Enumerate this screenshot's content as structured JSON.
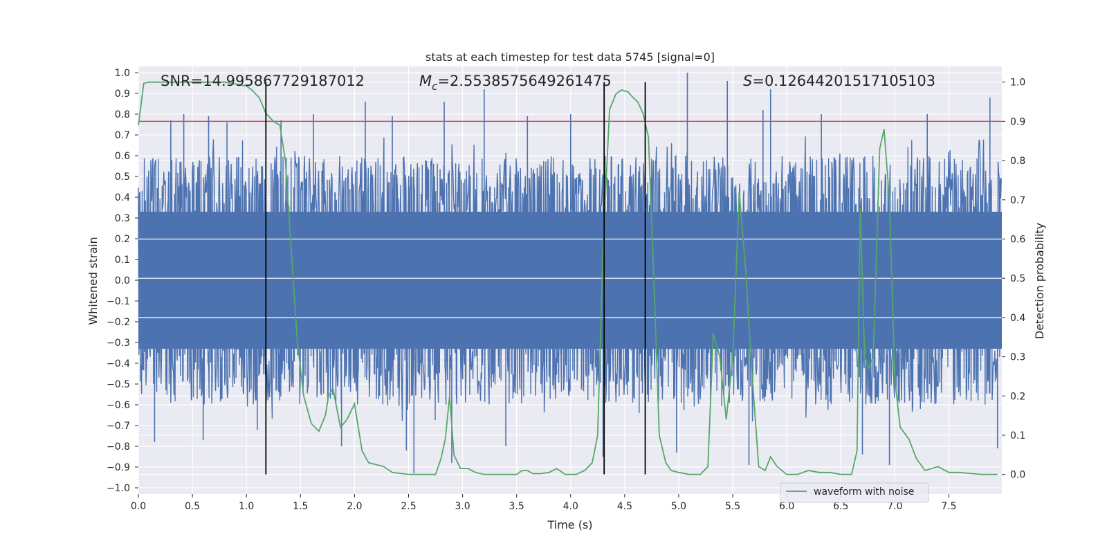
{
  "chart_data": {
    "type": "line",
    "title": "stats at each timestep for test data 5745 [signal=0]",
    "xlabel": "Time (s)",
    "ylabel_left": "Whitened strain",
    "ylabel_right": "Detection probability",
    "xlim": [
      0.0,
      7.99
    ],
    "ylim_left": [
      -1.03,
      1.03
    ],
    "ylim_right": [
      -0.05,
      1.04
    ],
    "x_ticks": [
      0.0,
      0.5,
      1.0,
      1.5,
      2.0,
      2.5,
      3.0,
      3.5,
      4.0,
      4.5,
      5.0,
      5.5,
      6.0,
      6.5,
      7.0,
      7.5
    ],
    "x_tick_labels": [
      "0.0",
      "0.5",
      "1.0",
      "1.5",
      "2.0",
      "2.5",
      "3.0",
      "3.5",
      "4.0",
      "4.5",
      "5.0",
      "5.5",
      "6.0",
      "6.5",
      "7.0",
      "7.5"
    ],
    "y_left_ticks": [
      1.0,
      0.9,
      0.8,
      0.7,
      0.6,
      0.5,
      0.4,
      0.3,
      0.2,
      0.1,
      0.0,
      -0.1,
      -0.2,
      -0.3,
      -0.4,
      -0.5,
      -0.6,
      -0.7,
      -0.8,
      -0.9,
      -1.0
    ],
    "y_left_tick_labels": [
      "1.0",
      "0.9",
      "0.8",
      "0.7",
      "0.6",
      "0.5",
      "0.4",
      "0.3",
      "0.2",
      "0.1",
      "0.0",
      "−0.1",
      "−0.2",
      "−0.3",
      "−0.4",
      "−0.5",
      "−0.6",
      "−0.7",
      "−0.8",
      "−0.9",
      "−1.0"
    ],
    "y_right_ticks": [
      1.0,
      0.9,
      0.8,
      0.7,
      0.6,
      0.5,
      0.4,
      0.3,
      0.2,
      0.1,
      0.0
    ],
    "y_right_tick_labels": [
      "1.0",
      "0.9",
      "0.8",
      "0.7",
      "0.6",
      "0.5",
      "0.4",
      "0.3",
      "0.2",
      "0.1",
      "0.0"
    ],
    "annotations": {
      "snr": "SNR=14.995867729187012",
      "mc_symbol": "M",
      "mc_sub": "c",
      "mc_value": "=2.5538575649261475",
      "s_symbol": "S",
      "s_value": "=0.12644201517105103"
    },
    "threshold": {
      "y_right": 0.9,
      "color": "#c44e52"
    },
    "vertical_lines_x": [
      1.18,
      4.31,
      4.69
    ],
    "waveform": {
      "name": "waveform with noise",
      "color": "#4c72b0",
      "n_samples": 1600,
      "envelope_inner": 0.33,
      "envelope_outer": 0.6,
      "spikes": [
        {
          "x": 0.3,
          "y": 0.77
        },
        {
          "x": 0.42,
          "y": 0.8
        },
        {
          "x": 0.65,
          "y": 0.79
        },
        {
          "x": 0.82,
          "y": 0.76
        },
        {
          "x": 1.32,
          "y": 0.77
        },
        {
          "x": 1.62,
          "y": 0.8
        },
        {
          "x": 2.1,
          "y": 0.86
        },
        {
          "x": 2.35,
          "y": 0.79
        },
        {
          "x": 2.83,
          "y": 0.86
        },
        {
          "x": 3.2,
          "y": 0.92
        },
        {
          "x": 3.6,
          "y": 0.79
        },
        {
          "x": 4.0,
          "y": 0.8
        },
        {
          "x": 5.08,
          "y": 1.0
        },
        {
          "x": 5.45,
          "y": 0.96
        },
        {
          "x": 5.78,
          "y": 0.82
        },
        {
          "x": 5.85,
          "y": 0.92
        },
        {
          "x": 6.32,
          "y": 0.8
        },
        {
          "x": 7.3,
          "y": 0.8
        },
        {
          "x": 7.88,
          "y": 0.88
        },
        {
          "x": 0.15,
          "y": -0.78
        },
        {
          "x": 0.6,
          "y": -0.77
        },
        {
          "x": 1.1,
          "y": -0.72
        },
        {
          "x": 1.88,
          "y": -0.8
        },
        {
          "x": 2.48,
          "y": -0.82
        },
        {
          "x": 2.55,
          "y": -0.93
        },
        {
          "x": 2.9,
          "y": -0.88
        },
        {
          "x": 3.4,
          "y": -0.8
        },
        {
          "x": 4.3,
          "y": -0.85
        },
        {
          "x": 4.98,
          "y": -0.83
        },
        {
          "x": 5.65,
          "y": -0.89
        },
        {
          "x": 6.7,
          "y": -0.84
        },
        {
          "x": 6.95,
          "y": -0.89
        },
        {
          "x": 7.95,
          "y": -0.81
        }
      ]
    },
    "probability": {
      "name": "Detection probability",
      "color": "#55a868",
      "x": [
        0.0,
        0.05,
        0.1,
        0.2,
        0.3,
        0.4,
        0.5,
        0.6,
        0.7,
        0.8,
        0.9,
        1.0,
        1.05,
        1.12,
        1.18,
        1.25,
        1.31,
        1.36,
        1.42,
        1.47,
        1.53,
        1.6,
        1.67,
        1.73,
        1.76,
        1.8,
        1.87,
        1.93,
        2.0,
        2.07,
        2.13,
        2.2,
        2.27,
        2.35,
        2.5,
        2.65,
        2.75,
        2.8,
        2.84,
        2.88,
        2.92,
        2.98,
        3.05,
        3.12,
        3.2,
        3.35,
        3.5,
        3.55,
        3.6,
        3.65,
        3.72,
        3.8,
        3.87,
        3.95,
        4.05,
        4.13,
        4.2,
        4.25,
        4.3,
        4.36,
        4.42,
        4.47,
        4.53,
        4.58,
        4.62,
        4.67,
        4.72,
        4.77,
        4.82,
        4.88,
        4.93,
        5.0,
        5.1,
        5.2,
        5.27,
        5.32,
        5.38,
        5.44,
        5.5,
        5.56,
        5.62,
        5.67,
        5.74,
        5.8,
        5.85,
        5.91,
        6.0,
        6.1,
        6.2,
        6.3,
        6.4,
        6.5,
        6.6,
        6.65,
        6.68,
        6.72,
        6.76,
        6.8,
        6.86,
        6.9,
        6.95,
        7.0,
        7.05,
        7.13,
        7.2,
        7.28,
        7.4,
        7.5,
        7.6,
        7.8,
        7.95
      ],
      "y": [
        0.89,
        0.997,
        1.0,
        1.0,
        1.0,
        1.0,
        1.0,
        1.0,
        1.0,
        1.0,
        0.995,
        0.99,
        0.98,
        0.96,
        0.92,
        0.9,
        0.89,
        0.8,
        0.55,
        0.34,
        0.2,
        0.13,
        0.11,
        0.15,
        0.2,
        0.22,
        0.12,
        0.14,
        0.18,
        0.06,
        0.03,
        0.025,
        0.02,
        0.005,
        0.0,
        0.0,
        0.0,
        0.04,
        0.09,
        0.2,
        0.05,
        0.015,
        0.015,
        0.005,
        0.0,
        0.0,
        0.0,
        0.01,
        0.01,
        0.002,
        0.002,
        0.005,
        0.015,
        0.0,
        0.0,
        0.01,
        0.03,
        0.1,
        0.58,
        0.93,
        0.97,
        0.98,
        0.975,
        0.96,
        0.95,
        0.92,
        0.86,
        0.5,
        0.1,
        0.03,
        0.01,
        0.005,
        0.0,
        0.0,
        0.02,
        0.36,
        0.3,
        0.14,
        0.3,
        0.72,
        0.52,
        0.29,
        0.02,
        0.01,
        0.045,
        0.02,
        0.0,
        0.0,
        0.01,
        0.005,
        0.005,
        0.0,
        0.0,
        0.06,
        0.68,
        0.3,
        0.27,
        0.3,
        0.83,
        0.88,
        0.7,
        0.24,
        0.12,
        0.09,
        0.04,
        0.01,
        0.02,
        0.005,
        0.005,
        0.0,
        0.0
      ]
    },
    "legend": {
      "label": "waveform with noise",
      "placement": "lower-right"
    },
    "grid": true
  }
}
